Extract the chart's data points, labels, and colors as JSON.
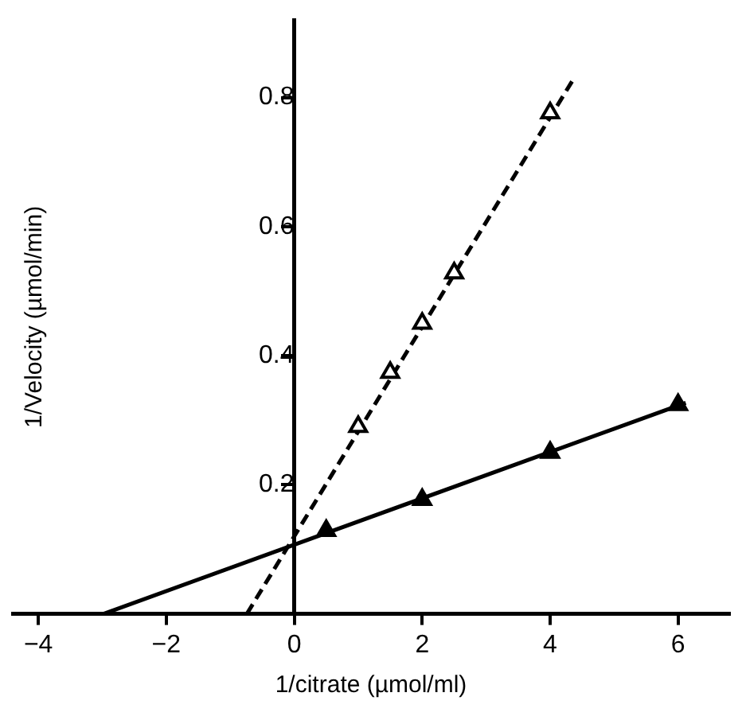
{
  "chart_data": {
    "type": "scatter",
    "xlabel": "1/citrate (µmol/ml)",
    "ylabel": "1/Velocity (µmol/min)",
    "xlim": [
      -4.4,
      6.8
    ],
    "xticks": [
      {
        "value": -4,
        "label": "−4"
      },
      {
        "value": -2,
        "label": "−2"
      },
      0,
      2,
      4,
      6
    ],
    "ylim": [
      0,
      0.92
    ],
    "yticks": [
      0.2,
      0.4,
      0.6,
      0.8
    ],
    "grid": false,
    "legend": false,
    "marker": "triangle",
    "series": [
      {
        "color": "#000000",
        "x": [
          0.5,
          2,
          4,
          6
        ],
        "values": [
          0.129,
          0.177,
          0.25,
          0.324
        ]
      },
      {
        "color": "#ffffff",
        "x": [
          1,
          1.5,
          2,
          2.5,
          4
        ],
        "values": [
          0.29,
          0.374,
          0.45,
          0.528,
          0.776
        ]
      },
      {
        "type": "line",
        "color": "#000000",
        "line_style": "solid",
        "marker": "none",
        "x": [
          -2.98,
          6.12
        ],
        "values": [
          0,
          0.327
        ]
      },
      {
        "type": "line",
        "color": "#000000",
        "line_style": "dashed",
        "marker": "none",
        "x": [
          -0.74,
          4.38
        ],
        "values": [
          0,
          0.831
        ]
      }
    ]
  }
}
